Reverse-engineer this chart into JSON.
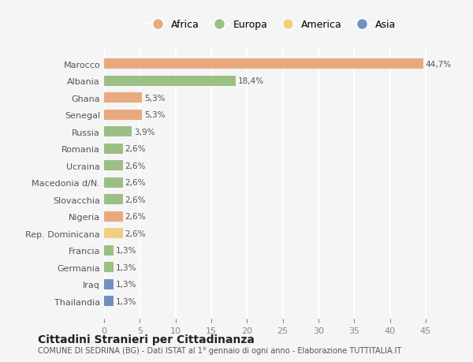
{
  "countries": [
    "Marocco",
    "Albania",
    "Ghana",
    "Senegal",
    "Russia",
    "Romania",
    "Ucraina",
    "Macedonia d/N.",
    "Slovacchia",
    "Nigeria",
    "Rep. Dominicana",
    "Francia",
    "Germania",
    "Iraq",
    "Thailandia"
  ],
  "values": [
    44.7,
    18.4,
    5.3,
    5.3,
    3.9,
    2.6,
    2.6,
    2.6,
    2.6,
    2.6,
    2.6,
    1.3,
    1.3,
    1.3,
    1.3
  ],
  "labels": [
    "44,7%",
    "18,4%",
    "5,3%",
    "5,3%",
    "3,9%",
    "2,6%",
    "2,6%",
    "2,6%",
    "2,6%",
    "2,6%",
    "2,6%",
    "1,3%",
    "1,3%",
    "1,3%",
    "1,3%"
  ],
  "continents": [
    "Africa",
    "Europa",
    "Africa",
    "Africa",
    "Europa",
    "Europa",
    "Europa",
    "Europa",
    "Europa",
    "Africa",
    "America",
    "Europa",
    "Europa",
    "Asia",
    "Asia"
  ],
  "colors": {
    "Africa": "#E8A97E",
    "Europa": "#9BBF85",
    "America": "#F0D080",
    "Asia": "#7090C0"
  },
  "legend_order": [
    "Africa",
    "Europa",
    "America",
    "Asia"
  ],
  "title": "Cittadini Stranieri per Cittadinanza",
  "subtitle": "COMUNE DI SEDRINA (BG) - Dati ISTAT al 1° gennaio di ogni anno - Elaborazione TUTTITALIA.IT",
  "xlim": [
    0,
    47
  ],
  "xticks": [
    0,
    5,
    10,
    15,
    20,
    25,
    30,
    35,
    40,
    45
  ],
  "background_color": "#f5f5f5",
  "grid_color": "#ffffff"
}
